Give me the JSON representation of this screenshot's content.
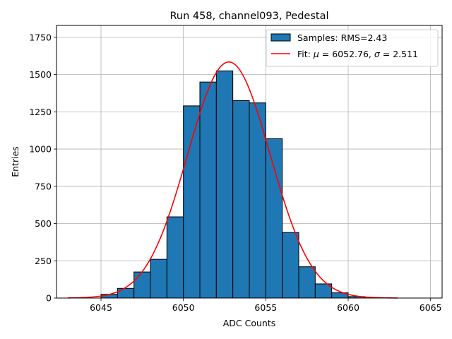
{
  "chart_data": {
    "type": "bar",
    "title": "Run 458, channel093, Pedestal",
    "xlabel": "ADC Counts",
    "ylabel": "Entries",
    "xlim": [
      6042.3,
      6065.7
    ],
    "ylim": [
      0,
      1830
    ],
    "xticks": [
      6045,
      6050,
      6055,
      6060,
      6065
    ],
    "yticks": [
      0,
      250,
      500,
      750,
      1000,
      1250,
      1500,
      1750
    ],
    "grid": true,
    "legend_position": "top-right",
    "histogram": {
      "name": "Samples: RMS=2.43",
      "color": "#1f77b4",
      "bins": [
        {
          "x0": 6045,
          "x1": 6046,
          "count": 25
        },
        {
          "x0": 6046,
          "x1": 6047,
          "count": 65
        },
        {
          "x0": 6047,
          "x1": 6048,
          "count": 175
        },
        {
          "x0": 6048,
          "x1": 6049,
          "count": 260
        },
        {
          "x0": 6049,
          "x1": 6050,
          "count": 545
        },
        {
          "x0": 6050,
          "x1": 6051,
          "count": 1290
        },
        {
          "x0": 6051,
          "x1": 6052,
          "count": 1450
        },
        {
          "x0": 6052,
          "x1": 6053,
          "count": 1525
        },
        {
          "x0": 6053,
          "x1": 6054,
          "count": 1325
        },
        {
          "x0": 6054,
          "x1": 6055,
          "count": 1310
        },
        {
          "x0": 6055,
          "x1": 6056,
          "count": 1070
        },
        {
          "x0": 6056,
          "x1": 6057,
          "count": 440
        },
        {
          "x0": 6057,
          "x1": 6058,
          "count": 210
        },
        {
          "x0": 6058,
          "x1": 6059,
          "count": 95
        },
        {
          "x0": 6059,
          "x1": 6060,
          "count": 35
        },
        {
          "x0": 6060,
          "x1": 6061,
          "count": 10
        },
        {
          "x0": 6061,
          "x1": 6062,
          "count": 3
        }
      ]
    },
    "fit": {
      "name": "Fit: μ = 6052.76, σ = 2.511",
      "name_prefix": "Fit: ",
      "mu_symbol": "μ",
      "mu_text": " = 6052.76, ",
      "sigma_symbol": "σ",
      "sigma_text": " = 2.511",
      "type": "gaussian",
      "mu": 6052.76,
      "sigma": 2.511,
      "amplitude": 1585,
      "x_range": [
        6043,
        6063
      ],
      "color": "#ff0000"
    }
  }
}
